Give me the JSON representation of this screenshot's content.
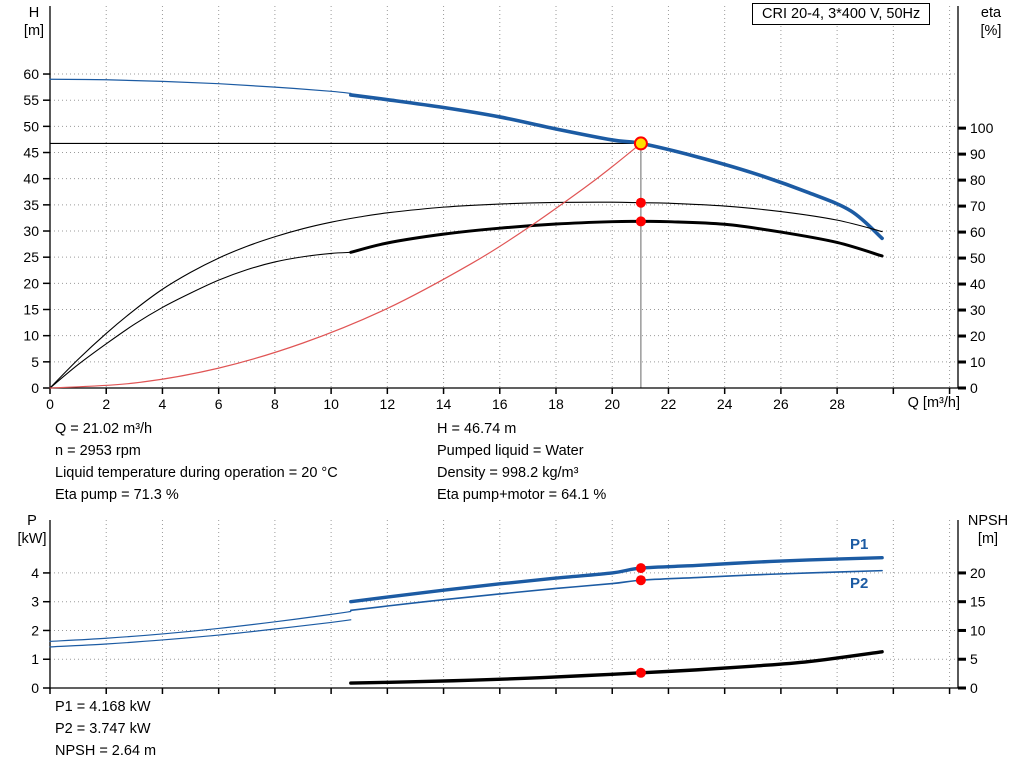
{
  "title_box": {
    "label": "CRI 20-4, 3*400 V, 50Hz"
  },
  "axis_labels": {
    "top_left_1": "H",
    "top_left_2": "[m]",
    "top_right_1": "eta",
    "top_right_2": "[%]",
    "x": "Q [m³/h]",
    "bottom_left_1": "P",
    "bottom_left_2": "[kW]",
    "bottom_right_1": "NPSH",
    "bottom_right_2": "[m]"
  },
  "curve_labels": {
    "p1": "P1",
    "p2": "P2"
  },
  "info_top_left": [
    "Q = 21.02 m³/h",
    "n = 2953 rpm",
    "Liquid temperature during operation = 20 °C",
    "Eta pump = 71.3 %"
  ],
  "info_top_right": [
    "H = 46.74 m",
    "Pumped liquid = Water",
    "Density = 998.2 kg/m³",
    "Eta pump+motor = 64.1 %"
  ],
  "info_bottom": [
    "P1 = 4.168 kW",
    "P2 = 3.747 kW",
    "NPSH = 2.64 m"
  ],
  "colors": {
    "blue": "#1c5ba3",
    "black": "#000000",
    "red": "#e05555",
    "marker": "#ff0000",
    "duty_fill": "#ffdf00",
    "grid": "#9b9b9b",
    "axis": "#000000",
    "label_blue": "#1c5ba3"
  },
  "chart_data": [
    {
      "type": "line",
      "title": "CRI 20-4, 3*400 V, 50Hz",
      "x": {
        "label": "Q [m³/h]",
        "min": 0,
        "max": 32.3,
        "grid_step": 2,
        "label_max": 28,
        "show_labels": true,
        "tick_labels": [
          0,
          2,
          4,
          6,
          8,
          10,
          12,
          14,
          16,
          18,
          20,
          22,
          24,
          26,
          28
        ]
      },
      "y_left": {
        "label": "H [m]",
        "min": 0,
        "max": 73,
        "ticks": [
          0,
          5,
          10,
          15,
          20,
          25,
          30,
          35,
          40,
          45,
          50,
          55,
          60
        ]
      },
      "y_right": {
        "label": "eta [%]",
        "min": 0,
        "max": 147,
        "ticks": [
          0,
          10,
          20,
          30,
          40,
          50,
          60,
          70,
          80,
          90,
          100
        ]
      },
      "duty_point": {
        "q": 21.02,
        "h": 46.74
      },
      "markers": [
        {
          "q": 21.02,
          "v": 71.3,
          "axis": "right"
        },
        {
          "q": 21.02,
          "v": 64.1,
          "axis": "right"
        }
      ],
      "series": [
        {
          "name": "head-curve-trim",
          "axis": "left",
          "color": "blue",
          "width": 1.2,
          "points": [
            [
              0,
              59
            ],
            [
              2,
              58.9
            ],
            [
              4,
              58.6
            ],
            [
              6,
              58.15
            ],
            [
              8,
              57.5
            ],
            [
              10,
              56.7
            ],
            [
              10.7,
              56.3
            ]
          ]
        },
        {
          "name": "head-curve",
          "axis": "left",
          "color": "blue",
          "width": 3.6,
          "points": [
            [
              10.7,
              56.0
            ],
            [
              12,
              55.1
            ],
            [
              14,
              53.6
            ],
            [
              16,
              51.8
            ],
            [
              18,
              49.5
            ],
            [
              20,
              47.4
            ],
            [
              21.02,
              46.74
            ],
            [
              23,
              44.2
            ],
            [
              25,
              41.1
            ],
            [
              27,
              37.3
            ],
            [
              28.5,
              33.8
            ],
            [
              29.6,
              28.6
            ]
          ]
        },
        {
          "name": "eta-pump-curve",
          "axis": "right",
          "color": "black",
          "width": 1.1,
          "points": [
            [
              0,
              0
            ],
            [
              1,
              11
            ],
            [
              2,
              21
            ],
            [
              3,
              30
            ],
            [
              4,
              38
            ],
            [
              5,
              44.5
            ],
            [
              6,
              50
            ],
            [
              7,
              54.5
            ],
            [
              8,
              58.2
            ],
            [
              9,
              61.3
            ],
            [
              10,
              63.8
            ],
            [
              11,
              65.8
            ],
            [
              12,
              67.4
            ],
            [
              14,
              69.6
            ],
            [
              16,
              70.8
            ],
            [
              18,
              71.4
            ],
            [
              20,
              71.5
            ],
            [
              21.02,
              71.3
            ],
            [
              22,
              71.1
            ],
            [
              24,
              70
            ],
            [
              26,
              67.9
            ],
            [
              28,
              64.6
            ],
            [
              29.6,
              60.2
            ]
          ]
        },
        {
          "name": "eta-pump-motor-curve-trim",
          "axis": "right",
          "color": "black",
          "width": 1.1,
          "points": [
            [
              0,
              0
            ],
            [
              1,
              9
            ],
            [
              2,
              17
            ],
            [
              3,
              24.5
            ],
            [
              4,
              31
            ],
            [
              5,
              36.5
            ],
            [
              6,
              41.5
            ],
            [
              7,
              45.5
            ],
            [
              8,
              48.5
            ],
            [
              9,
              50.5
            ],
            [
              10,
              51.8
            ],
            [
              10.7,
              52.2
            ]
          ]
        },
        {
          "name": "eta-pump-motor-curve",
          "axis": "right",
          "color": "black",
          "width": 3.0,
          "points": [
            [
              10.7,
              52.2
            ],
            [
              12,
              55.8
            ],
            [
              14,
              59.2
            ],
            [
              16,
              61.5
            ],
            [
              18,
              63.1
            ],
            [
              20,
              64
            ],
            [
              21.02,
              64.1
            ],
            [
              22,
              64
            ],
            [
              24,
              63
            ],
            [
              26,
              60
            ],
            [
              28,
              56
            ],
            [
              29.6,
              50.8
            ]
          ]
        },
        {
          "name": "system-curve",
          "axis": "left",
          "color": "red",
          "width": 1.2,
          "points": [
            [
              0,
              0
            ],
            [
              3,
              0.95
            ],
            [
              6,
              3.8
            ],
            [
              9,
              8.6
            ],
            [
              12,
              15.2
            ],
            [
              15,
              23.8
            ],
            [
              17,
              30.6
            ],
            [
              19,
              38.2
            ],
            [
              20,
              42.3
            ],
            [
              21.02,
              46.74
            ]
          ]
        }
      ]
    },
    {
      "type": "line",
      "title": "Power and NPSH curves",
      "x": {
        "label": "Q [m³/h]",
        "min": 0,
        "max": 32.3,
        "grid_step": 2,
        "label_max": 28,
        "show_labels": false,
        "tick_labels": [
          0,
          2,
          4,
          6,
          8,
          10,
          12,
          14,
          16,
          18,
          20,
          22,
          24,
          26,
          28
        ]
      },
      "y_left": {
        "label": "P [kW]",
        "min": 0,
        "max": 5.84,
        "ticks": [
          0,
          1,
          2,
          3,
          4
        ]
      },
      "y_right": {
        "label": "NPSH [m]",
        "min": 0,
        "max": 29.2,
        "ticks": [
          0,
          5,
          10,
          15,
          20
        ]
      },
      "markers": [
        {
          "q": 21.02,
          "v": 4.168,
          "axis": "left"
        },
        {
          "q": 21.02,
          "v": 3.747,
          "axis": "left"
        },
        {
          "q": 21.02,
          "v": 2.64,
          "axis": "right"
        }
      ],
      "series": [
        {
          "name": "p1-curve-trim",
          "axis": "left",
          "color": "blue",
          "width": 1.2,
          "points": [
            [
              0,
              1.62
            ],
            [
              2,
              1.73
            ],
            [
              4,
              1.88
            ],
            [
              6,
              2.07
            ],
            [
              8,
              2.3
            ],
            [
              10,
              2.56
            ],
            [
              10.7,
              2.66
            ]
          ]
        },
        {
          "name": "p1-curve",
          "axis": "left",
          "color": "blue",
          "width": 3.4,
          "points": [
            [
              10.7,
              3.0
            ],
            [
              12,
              3.16
            ],
            [
              14,
              3.4
            ],
            [
              16,
              3.62
            ],
            [
              18,
              3.82
            ],
            [
              20,
              4.0
            ],
            [
              21.02,
              4.168
            ],
            [
              23,
              4.26
            ],
            [
              25,
              4.37
            ],
            [
              27,
              4.45
            ],
            [
              29.6,
              4.53
            ]
          ]
        },
        {
          "name": "p2-curve-trim",
          "axis": "left",
          "color": "blue",
          "width": 1.2,
          "points": [
            [
              0,
              1.43
            ],
            [
              2,
              1.53
            ],
            [
              4,
              1.67
            ],
            [
              6,
              1.84
            ],
            [
              8,
              2.05
            ],
            [
              10,
              2.28
            ],
            [
              10.7,
              2.37
            ]
          ]
        },
        {
          "name": "p2-curve",
          "axis": "left",
          "color": "blue",
          "width": 1.6,
          "points": [
            [
              10.7,
              2.7
            ],
            [
              12,
              2.85
            ],
            [
              14,
              3.07
            ],
            [
              16,
              3.27
            ],
            [
              18,
              3.46
            ],
            [
              20,
              3.63
            ],
            [
              21.02,
              3.747
            ],
            [
              23,
              3.84
            ],
            [
              25,
              3.93
            ],
            [
              27,
              4.0
            ],
            [
              29.6,
              4.08
            ]
          ]
        },
        {
          "name": "npsh-curve",
          "axis": "right",
          "color": "black",
          "width": 3.4,
          "points": [
            [
              10.7,
              0.85
            ],
            [
              13,
              1.1
            ],
            [
              15,
              1.35
            ],
            [
              17,
              1.7
            ],
            [
              19,
              2.15
            ],
            [
              21.02,
              2.64
            ],
            [
              23,
              3.15
            ],
            [
              25,
              3.8
            ],
            [
              27,
              4.6
            ],
            [
              29.6,
              6.3
            ]
          ]
        }
      ]
    }
  ]
}
